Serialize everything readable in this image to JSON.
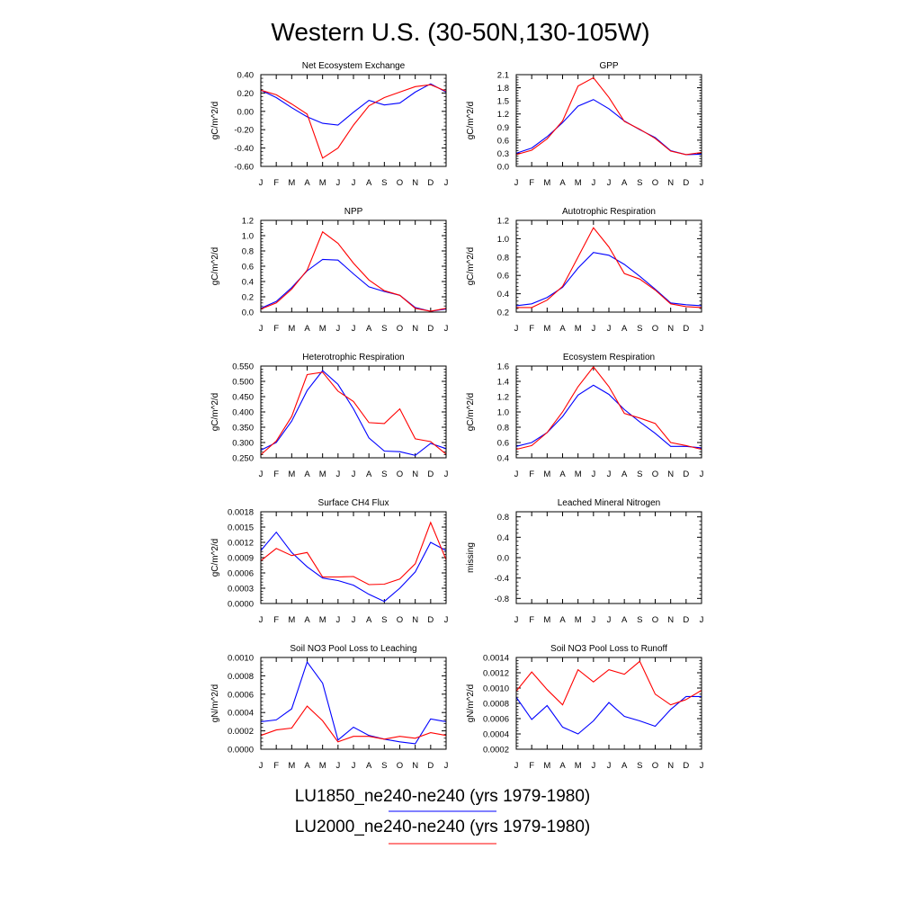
{
  "page_title": "Western U.S. (30-50N,130-105W)",
  "months": [
    "J",
    "F",
    "M",
    "A",
    "M",
    "J",
    "J",
    "A",
    "S",
    "O",
    "N",
    "D",
    "J"
  ],
  "legend": [
    {
      "label": "LU1850_ne240-ne240 (yrs 1979-1980)",
      "color": "#0000ff"
    },
    {
      "label": "LU2000_ne240-ne240 (yrs 1979-1980)",
      "color": "#ff0000"
    }
  ],
  "chart_data": [
    {
      "type": "line",
      "title": "Net Ecosystem Exchange",
      "ylabel": "gC/m^2/d",
      "ylim": [
        -0.6,
        0.4
      ],
      "yticks": [
        -0.6,
        -0.4,
        -0.2,
        0.0,
        0.2,
        0.4
      ],
      "yticklabels": [
        "-0.60",
        "-0.40",
        "-0.20",
        "0.00",
        "0.20",
        "0.40"
      ],
      "series": [
        {
          "name": "LU1850_ne240-ne240 (yrs 1979-1980)",
          "color": "#0000ff",
          "values": [
            0.23,
            0.15,
            0.04,
            -0.06,
            -0.13,
            -0.15,
            -0.01,
            0.12,
            0.07,
            0.09,
            0.21,
            0.3,
            0.21
          ]
        },
        {
          "name": "LU2000_ne240-ne240 (yrs 1979-1980)",
          "color": "#ff0000",
          "values": [
            0.23,
            0.18,
            0.08,
            -0.03,
            -0.51,
            -0.4,
            -0.15,
            0.06,
            0.15,
            0.21,
            0.27,
            0.29,
            0.22
          ]
        }
      ]
    },
    {
      "type": "line",
      "title": "GPP",
      "ylabel": "gC/m^2/d",
      "ylim": [
        0.0,
        2.1
      ],
      "yticks": [
        0.0,
        0.3,
        0.6,
        0.9,
        1.2,
        1.5,
        1.8,
        2.1
      ],
      "yticklabels": [
        "0.0",
        "0.3",
        "0.6",
        "0.9",
        "1.2",
        "1.5",
        "1.8",
        "2.1"
      ],
      "series": [
        {
          "name": "LU1850_ne240-ne240 (yrs 1979-1980)",
          "color": "#0000ff",
          "values": [
            0.3,
            0.42,
            0.68,
            1.0,
            1.38,
            1.53,
            1.32,
            1.04,
            0.84,
            0.66,
            0.36,
            0.27,
            0.28
          ]
        },
        {
          "name": "LU2000_ne240-ne240 (yrs 1979-1980)",
          "color": "#ff0000",
          "values": [
            0.27,
            0.37,
            0.63,
            1.04,
            1.84,
            2.03,
            1.58,
            1.03,
            0.85,
            0.64,
            0.35,
            0.27,
            0.32
          ]
        }
      ]
    },
    {
      "type": "line",
      "title": "NPP",
      "ylabel": "gC/m^2/d",
      "ylim": [
        0.0,
        1.2
      ],
      "yticks": [
        0.0,
        0.2,
        0.4,
        0.6,
        0.8,
        1.0,
        1.2
      ],
      "yticklabels": [
        "0.0",
        "0.2",
        "0.4",
        "0.6",
        "0.8",
        "1.0",
        "1.2"
      ],
      "series": [
        {
          "name": "LU1850_ne240-ne240 (yrs 1979-1980)",
          "color": "#0000ff",
          "values": [
            0.05,
            0.14,
            0.32,
            0.54,
            0.69,
            0.68,
            0.5,
            0.33,
            0.27,
            0.22,
            0.06,
            0.01,
            0.04
          ]
        },
        {
          "name": "LU2000_ne240-ne240 (yrs 1979-1980)",
          "color": "#ff0000",
          "values": [
            0.04,
            0.12,
            0.3,
            0.55,
            1.05,
            0.9,
            0.64,
            0.42,
            0.28,
            0.22,
            0.05,
            0.01,
            0.05
          ]
        }
      ]
    },
    {
      "type": "line",
      "title": "Autotrophic Respiration",
      "ylabel": "gC/m^2/d",
      "ylim": [
        0.2,
        1.2
      ],
      "yticks": [
        0.2,
        0.4,
        0.6,
        0.8,
        1.0,
        1.2
      ],
      "yticklabels": [
        "0.2",
        "0.4",
        "0.6",
        "0.8",
        "1.0",
        "1.2"
      ],
      "series": [
        {
          "name": "LU1850_ne240-ne240 (yrs 1979-1980)",
          "color": "#0000ff",
          "values": [
            0.27,
            0.29,
            0.36,
            0.47,
            0.68,
            0.85,
            0.82,
            0.72,
            0.59,
            0.45,
            0.3,
            0.28,
            0.27
          ]
        },
        {
          "name": "LU2000_ne240-ne240 (yrs 1979-1980)",
          "color": "#ff0000",
          "values": [
            0.25,
            0.25,
            0.33,
            0.48,
            0.8,
            1.12,
            0.91,
            0.62,
            0.56,
            0.44,
            0.29,
            0.26,
            0.25
          ]
        }
      ]
    },
    {
      "type": "line",
      "title": "Heterotrophic Respiration",
      "ylabel": "gC/m^2/d",
      "ylim": [
        0.25,
        0.55
      ],
      "yticks": [
        0.25,
        0.3,
        0.35,
        0.4,
        0.45,
        0.5,
        0.55
      ],
      "yticklabels": [
        "0.250",
        "0.300",
        "0.350",
        "0.400",
        "0.450",
        "0.500",
        "0.550"
      ],
      "series": [
        {
          "name": "LU1850_ne240-ne240 (yrs 1979-1980)",
          "color": "#0000ff",
          "values": [
            0.275,
            0.3,
            0.37,
            0.47,
            0.535,
            0.49,
            0.41,
            0.315,
            0.272,
            0.27,
            0.258,
            0.297,
            0.28
          ]
        },
        {
          "name": "LU2000_ne240-ne240 (yrs 1979-1980)",
          "color": "#ff0000",
          "values": [
            0.26,
            0.305,
            0.385,
            0.522,
            0.53,
            0.468,
            0.434,
            0.365,
            0.362,
            0.41,
            0.312,
            0.303,
            0.262
          ]
        }
      ]
    },
    {
      "type": "line",
      "title": "Ecosystem Respiration",
      "ylabel": "gC/m^2/d",
      "ylim": [
        0.4,
        1.6
      ],
      "yticks": [
        0.4,
        0.6,
        0.8,
        1.0,
        1.2,
        1.4,
        1.6
      ],
      "yticklabels": [
        "0.4",
        "0.6",
        "0.8",
        "1.0",
        "1.2",
        "1.4",
        "1.6"
      ],
      "series": [
        {
          "name": "LU1850_ne240-ne240 (yrs 1979-1980)",
          "color": "#0000ff",
          "values": [
            0.55,
            0.6,
            0.73,
            0.94,
            1.22,
            1.35,
            1.23,
            1.03,
            0.87,
            0.72,
            0.55,
            0.55,
            0.53
          ]
        },
        {
          "name": "LU2000_ne240-ne240 (yrs 1979-1980)",
          "color": "#ff0000",
          "values": [
            0.51,
            0.56,
            0.73,
            1.0,
            1.33,
            1.59,
            1.33,
            0.98,
            0.92,
            0.85,
            0.6,
            0.56,
            0.51
          ]
        }
      ]
    },
    {
      "type": "line",
      "title": "Surface CH4 Flux",
      "ylabel": "gC/m^2/d",
      "ylim": [
        0.0,
        0.0018
      ],
      "yticks": [
        0.0,
        0.0003,
        0.0006,
        0.0009,
        0.0012,
        0.0015,
        0.0018
      ],
      "yticklabels": [
        "0.0000",
        "0.0003",
        "0.0006",
        "0.0009",
        "0.0012",
        "0.0015",
        "0.0018"
      ],
      "series": [
        {
          "name": "LU1850_ne240-ne240 (yrs 1979-1980)",
          "color": "#0000ff",
          "values": [
            0.00104,
            0.0014,
            0.001,
            0.00072,
            0.0005,
            0.00045,
            0.00036,
            0.00018,
            4e-05,
            0.0003,
            0.00062,
            0.0012,
            0.00104
          ]
        },
        {
          "name": "LU2000_ne240-ne240 (yrs 1979-1980)",
          "color": "#ff0000",
          "values": [
            0.00084,
            0.00108,
            0.00094,
            0.001,
            0.00052,
            0.00052,
            0.00053,
            0.00037,
            0.00038,
            0.00048,
            0.00078,
            0.00159,
            0.00086
          ]
        }
      ]
    },
    {
      "type": "line",
      "title": "Leached Mineral Nitrogen",
      "ylabel": "missing",
      "ylim": [
        -0.9,
        0.9
      ],
      "yticks": [
        -0.8,
        -0.4,
        0.0,
        0.4,
        0.8
      ],
      "yticklabels": [
        "-0.8",
        "-0.4",
        "0.0",
        "0.4",
        "0.8"
      ],
      "series": []
    },
    {
      "type": "line",
      "title": "Soil NO3 Pool Loss to Leaching",
      "ylabel": "gN/m^2/d",
      "ylim": [
        0.0,
        0.001
      ],
      "yticks": [
        0.0,
        0.0002,
        0.0004,
        0.0006,
        0.0008,
        0.001
      ],
      "yticklabels": [
        "0.0000",
        "0.0002",
        "0.0004",
        "0.0006",
        "0.0008",
        "0.0010"
      ],
      "series": [
        {
          "name": "LU1850_ne240-ne240 (yrs 1979-1980)",
          "color": "#0000ff",
          "values": [
            0.0003,
            0.00032,
            0.00044,
            0.00095,
            0.00072,
            0.0001,
            0.00024,
            0.00015,
            0.00011,
            8e-05,
            6e-05,
            0.00033,
            0.0003
          ]
        },
        {
          "name": "LU2000_ne240-ne240 (yrs 1979-1980)",
          "color": "#ff0000",
          "values": [
            0.00015,
            0.00021,
            0.00023,
            0.00047,
            0.00031,
            8e-05,
            0.00014,
            0.00014,
            0.00011,
            0.00014,
            0.00012,
            0.00018,
            0.00015
          ]
        }
      ]
    },
    {
      "type": "line",
      "title": "Soil NO3 Pool Loss to Runoff",
      "ylabel": "gN/m^2/d",
      "ylim": [
        0.0002,
        0.0014
      ],
      "yticks": [
        0.0002,
        0.0004,
        0.0006,
        0.0008,
        0.001,
        0.0012,
        0.0014
      ],
      "yticklabels": [
        "0.0002",
        "0.0004",
        "0.0006",
        "0.0008",
        "0.0010",
        "0.0012",
        "0.0014"
      ],
      "series": [
        {
          "name": "LU1850_ne240-ne240 (yrs 1979-1980)",
          "color": "#0000ff",
          "values": [
            0.00088,
            0.00059,
            0.00077,
            0.00049,
            0.0004,
            0.00057,
            0.00081,
            0.00063,
            0.00057,
            0.0005,
            0.00072,
            0.00089,
            0.00089
          ]
        },
        {
          "name": "LU2000_ne240-ne240 (yrs 1979-1980)",
          "color": "#ff0000",
          "values": [
            0.00096,
            0.00121,
            0.00098,
            0.00078,
            0.00124,
            0.00108,
            0.00124,
            0.00118,
            0.00135,
            0.00092,
            0.00078,
            0.00085,
            0.00097
          ]
        }
      ]
    }
  ]
}
